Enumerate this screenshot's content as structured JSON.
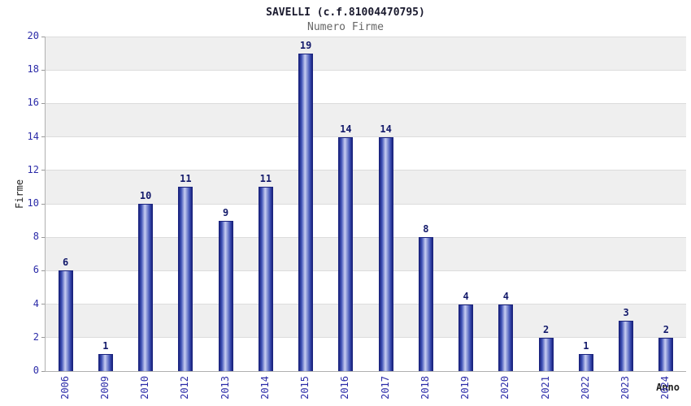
{
  "chart_data": {
    "type": "bar",
    "title": "SAVELLI (c.f.81004470795)",
    "subtitle": "Numero Firme",
    "xlabel": "Anno",
    "ylabel": "Firme",
    "categories": [
      "2006",
      "2009",
      "2010",
      "2012",
      "2013",
      "2014",
      "2015",
      "2016",
      "2017",
      "2018",
      "2019",
      "2020",
      "2021",
      "2022",
      "2023",
      "2024"
    ],
    "values": [
      6,
      1,
      10,
      11,
      9,
      11,
      19,
      14,
      14,
      8,
      4,
      4,
      2,
      1,
      3,
      2
    ],
    "ylim": [
      0,
      20
    ],
    "ytick_step": 2,
    "grid": true,
    "legend": false,
    "colors": {
      "bar_dark": "#1a237e",
      "bar_mid": "#3f51b5",
      "bar_light": "#c7cdf2",
      "band_white": "#ffffff",
      "band_gray": "#efefef",
      "gridline": "#dcdcdc",
      "tick_label": "#2b2ba8",
      "value_label": "#131a6b",
      "title": "#1a1a2e",
      "subtitle": "#666666",
      "axis_label": "#222222"
    }
  }
}
